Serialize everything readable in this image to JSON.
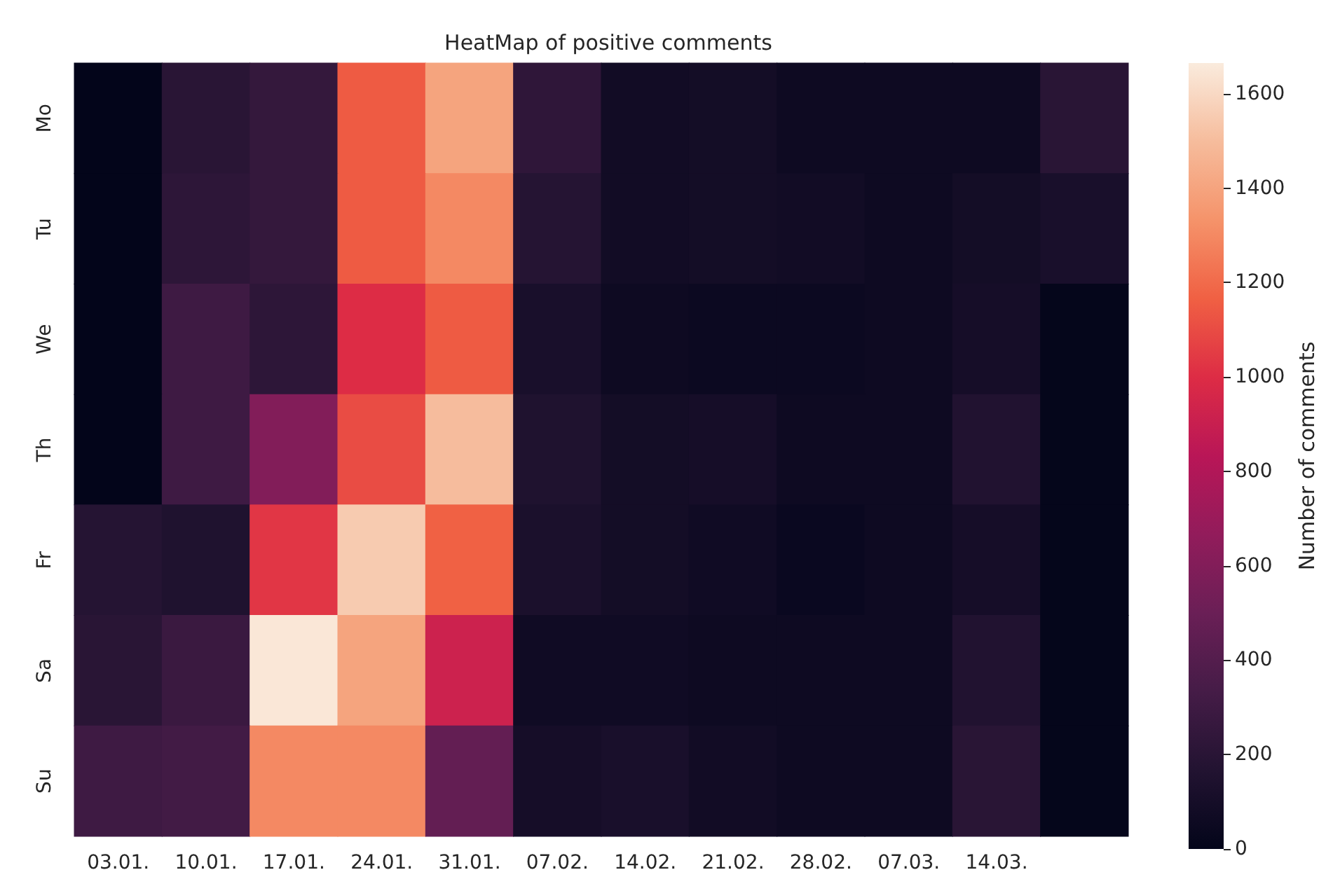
{
  "chart_data": {
    "type": "heatmap",
    "title": "HeatMap of positive comments",
    "clabel": "Number of comments",
    "categories": [
      "03.01.",
      "10.01.",
      "17.01.",
      "24.01.",
      "31.01.",
      "07.02.",
      "14.02.",
      "21.02.",
      "28.02.",
      "07.03.",
      "14.03.",
      null
    ],
    "y_categories": [
      "Mo",
      "Tu",
      "We",
      "Th",
      "Fr",
      "Sa",
      "Su"
    ],
    "cells": [
      [
        0,
        200,
        250,
        1150,
        1400,
        230,
        80,
        90,
        60,
        60,
        60,
        200
      ],
      [
        0,
        220,
        250,
        1150,
        1300,
        180,
        80,
        90,
        80,
        60,
        90,
        120
      ],
      [
        0,
        300,
        220,
        1000,
        1150,
        120,
        60,
        50,
        50,
        60,
        100,
        10
      ],
      [
        0,
        300,
        600,
        1100,
        1500,
        150,
        90,
        100,
        60,
        60,
        160,
        10
      ],
      [
        180,
        150,
        1030,
        1550,
        1170,
        130,
        90,
        70,
        40,
        60,
        100,
        10
      ],
      [
        200,
        280,
        1650,
        1400,
        920,
        70,
        70,
        60,
        60,
        60,
        160,
        10
      ],
      [
        300,
        320,
        1300,
        1300,
        470,
        100,
        120,
        80,
        60,
        60,
        200,
        10
      ]
    ],
    "clim": [
      0,
      1665
    ],
    "cticks": [
      0,
      200,
      400,
      600,
      800,
      1000,
      1200,
      1400,
      1600
    ],
    "colors": [
      "#03051a",
      "#221331",
      "#451c47",
      "#6a1f56",
      "#921c5b",
      "#b91657",
      "#dd2c45",
      "#f06043",
      "#f5936a",
      "#f6bc9c",
      "#faebdd"
    ]
  }
}
